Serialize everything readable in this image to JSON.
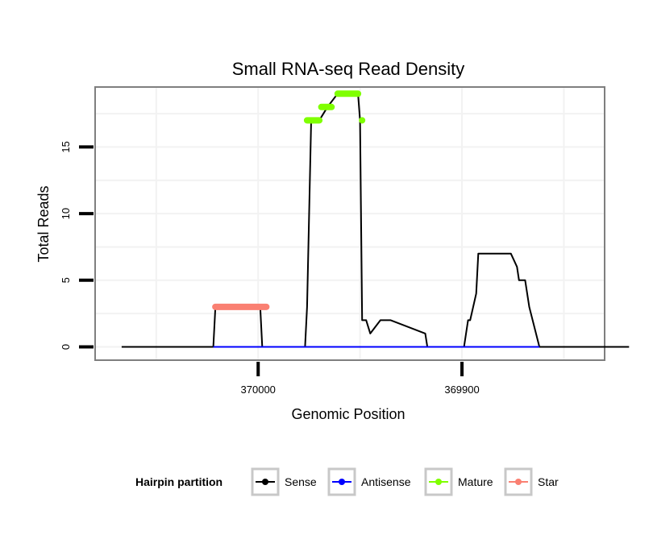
{
  "chart_data": {
    "type": "line",
    "title": "Small RNA-seq Read Density",
    "xlabel": "Genomic Position",
    "ylabel": "Total Reads",
    "x_reversed": true,
    "xlim": [
      370080,
      369830
    ],
    "ylim": [
      -1,
      19.5
    ],
    "x_ticks": [
      370000,
      369900
    ],
    "x_tick_labels": [
      "370000",
      "369900"
    ],
    "y_ticks": [
      0,
      5,
      10,
      15
    ],
    "y_tick_labels": [
      "0",
      "5",
      "10",
      "15"
    ],
    "legend": {
      "title": "Hairpin partition",
      "position": "bottom",
      "entries": [
        {
          "name": "Sense",
          "color": "#000000"
        },
        {
          "name": "Antisense",
          "color": "#0000ff"
        },
        {
          "name": "Mature",
          "color": "#7fff00"
        },
        {
          "name": "Star",
          "color": "#fa8072"
        }
      ]
    },
    "series": [
      {
        "name": "Sense",
        "color": "#000000",
        "x": [
          370067,
          370022,
          370021,
          369999,
          369998,
          369977,
          369976,
          369974,
          369970,
          369966,
          369961,
          369956,
          369951,
          369950,
          369949,
          369947,
          369945,
          369940,
          369935,
          369918,
          369917,
          369899,
          369898,
          369897,
          369896,
          369893,
          369892,
          369889,
          369876,
          369873,
          369872,
          369869,
          369867,
          369862,
          369818
        ],
        "y": [
          0,
          0,
          3,
          3,
          0,
          0,
          3,
          17,
          17,
          18,
          19,
          19,
          19,
          17,
          2,
          2,
          1,
          2,
          2,
          1,
          0,
          0,
          1,
          2,
          2,
          4,
          7,
          7,
          7,
          6,
          5,
          5,
          3,
          0,
          0
        ]
      },
      {
        "name": "Antisense",
        "color": "#0000ff",
        "x": [
          370022,
          369862
        ],
        "y": [
          0,
          0
        ]
      },
      {
        "name": "Mature",
        "color": "#7fff00",
        "segments": [
          {
            "x": [
              369976,
              369970
            ],
            "y": [
              17,
              17
            ]
          },
          {
            "x": [
              369969,
              369964
            ],
            "y": [
              18,
              18
            ]
          },
          {
            "x": [
              369961,
              369951
            ],
            "y": [
              19,
              19
            ]
          },
          {
            "x": [
              369949
            ],
            "y": [
              17
            ]
          }
        ]
      },
      {
        "name": "Star",
        "color": "#fa8072",
        "segments": [
          {
            "x": [
              370021,
              369996
            ],
            "y": [
              3,
              3
            ]
          }
        ]
      }
    ]
  }
}
